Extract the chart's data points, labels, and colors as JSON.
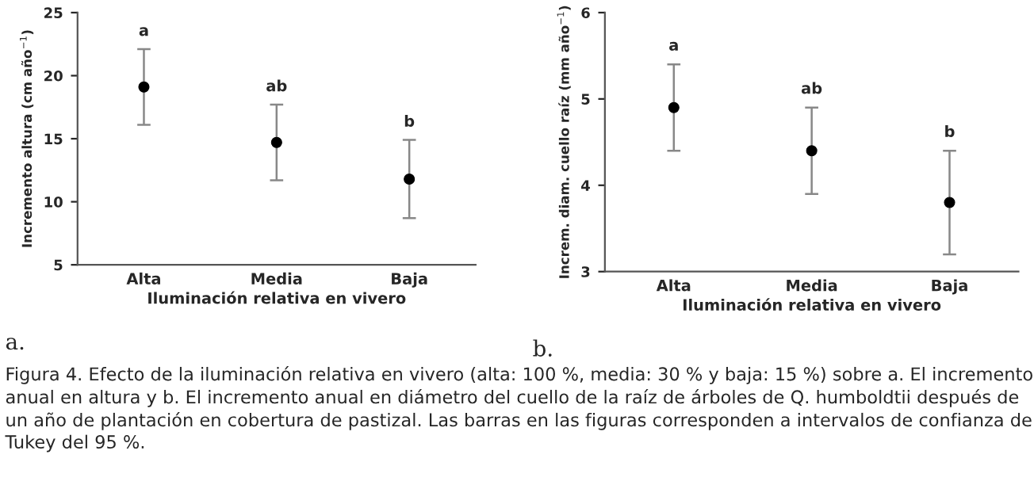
{
  "chart_data": [
    {
      "type": "scatter",
      "categories": [
        "Alta",
        "Media",
        "Baja"
      ],
      "xlabel": "Iluminación relativa en vivero",
      "ylabel": "Incremento altura (cm año$^{−1}$)",
      "ylim": [
        5,
        25
      ],
      "yticks": [
        5,
        10,
        15,
        20,
        25
      ],
      "grid": false,
      "marker": "circle",
      "series": [
        {
          "color": "#000000",
          "values": [
            19.1,
            14.7,
            11.8
          ],
          "errors": [
            3.0,
            3.0,
            3.1
          ]
        }
      ],
      "annotations": [
        "a",
        "ab",
        "b",
        "a.",
        "Figura 4. Efecto de la iluminación relativa en vivero (alta: 100 %, media: 30 % y baja: 15 %) sobre a. El incremento anual en altura y b. El incremento anual en diámetro del cuello de la raíz de árboles de Q. humboldtii después de un año de plantación en cobertura de pastizal. Las barras en las figuras corresponden a intervalos de confianza de Tukey del 95 %."
      ]
    },
    {
      "type": "scatter",
      "categories": [
        "Alta",
        "Media",
        "Baja"
      ],
      "xlabel": "Iluminación relativa en vivero",
      "ylabel": "Increm. diam. cuello raíz (mm año$^{−1}$)",
      "ylim": [
        3,
        6
      ],
      "yticks": [
        3,
        4,
        5,
        6
      ],
      "grid": false,
      "marker": "circle",
      "series": [
        {
          "color": "#000000",
          "values": [
            4.9,
            4.4,
            3.8
          ],
          "errors": [
            0.5,
            0.5,
            0.6
          ]
        }
      ],
      "annotations": [
        "a",
        "ab",
        "b",
        "b."
      ]
    }
  ]
}
